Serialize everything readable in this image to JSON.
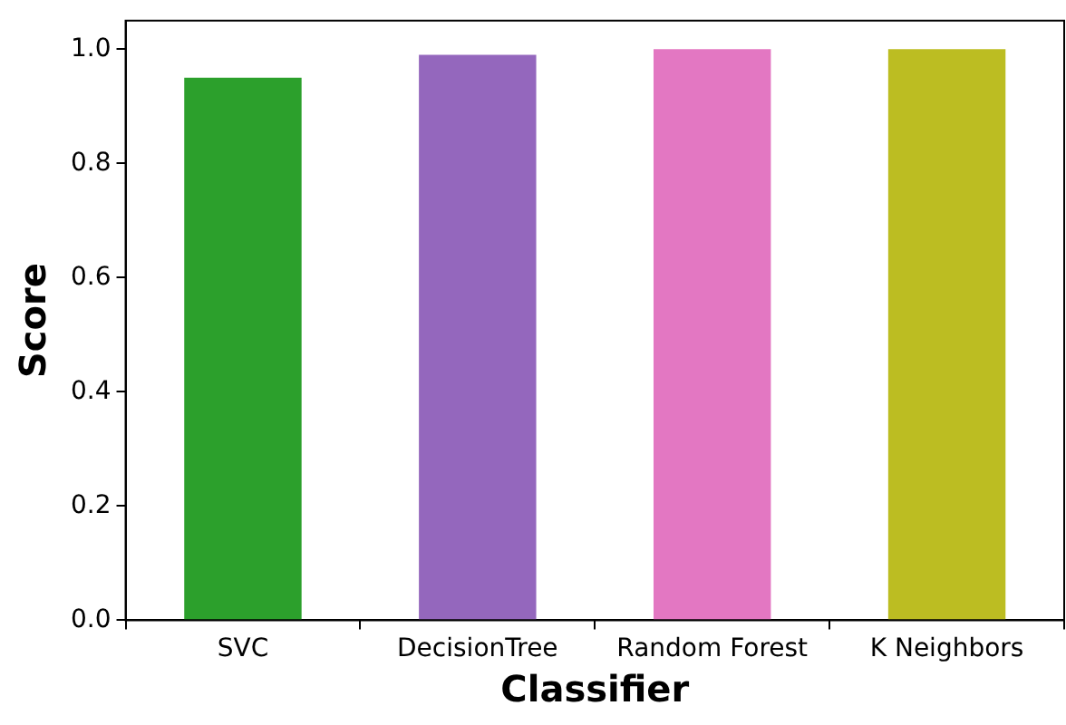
{
  "chart_data": {
    "type": "bar",
    "xlabel": "Classifier",
    "ylabel": "Score",
    "categories": [
      "SVC",
      "DecisionTree",
      "Random Forest",
      "K Neighbors"
    ],
    "values": [
      0.95,
      0.99,
      1.0,
      1.0
    ],
    "colors": [
      "#2ca02c",
      "#9467bd",
      "#e377c2",
      "#bcbd22"
    ],
    "ylim": [
      0,
      1.05
    ],
    "yticks": [
      {
        "value": 0,
        "label": "0.0"
      },
      {
        "value": 0.2,
        "label": "0.2"
      },
      {
        "value": 0.4,
        "label": "0.4"
      },
      {
        "value": 0.6,
        "label": "0.6"
      },
      {
        "value": 0.8,
        "label": "0.8"
      },
      {
        "value": 1,
        "label": "1.0"
      }
    ],
    "grid": false,
    "legend": false
  }
}
